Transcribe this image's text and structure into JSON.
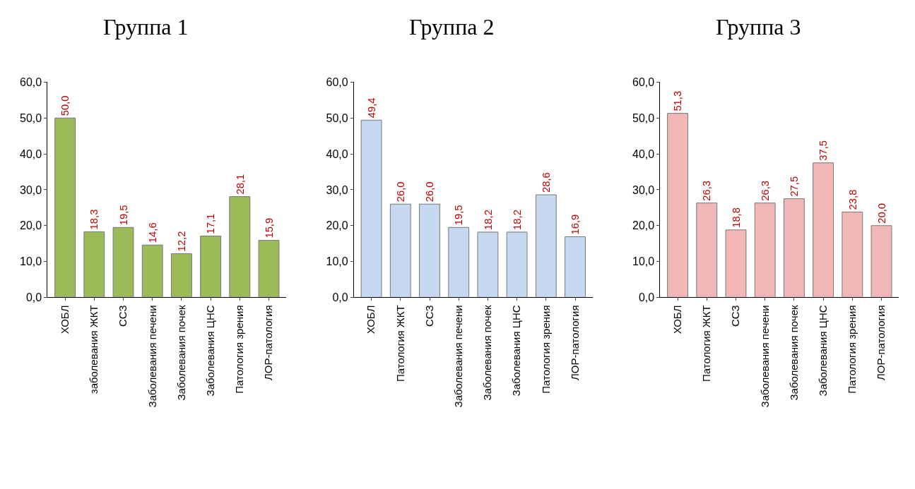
{
  "chart_data": [
    {
      "type": "bar",
      "title": "Группа 1",
      "categories": [
        "ХОБЛ",
        "заболевания ЖКТ",
        "ССЗ",
        "Заболевания печени",
        "Заболевания почек",
        "Заболевания ЦНС",
        "Патология зрения",
        "ЛОР-патология"
      ],
      "values": [
        50.0,
        18.3,
        19.5,
        14.6,
        12.2,
        17.1,
        28.1,
        15.9
      ],
      "value_labels": [
        "50,0",
        "18,3",
        "19,5",
        "14,6",
        "12,2",
        "17,1",
        "28,1",
        "15,9"
      ],
      "color": "#9bbb59",
      "ylim": [
        0,
        60
      ],
      "yticks": [
        {
          "value": 0,
          "label": "0,0"
        },
        {
          "value": 10,
          "label": "10,0"
        },
        {
          "value": 20,
          "label": "20,0"
        },
        {
          "value": 30,
          "label": "30,0"
        },
        {
          "value": 40,
          "label": "40,0"
        },
        {
          "value": 50,
          "label": "50,0"
        },
        {
          "value": 60,
          "label": "60,0"
        }
      ]
    },
    {
      "type": "bar",
      "title": "Группа 2",
      "categories": [
        "ХОБЛ",
        "Патология ЖКТ",
        "ССЗ",
        "Заболевания печени",
        "Заболевания почек",
        "Заболевания ЦНС",
        "Патология зрения",
        "ЛОР-патология"
      ],
      "values": [
        49.4,
        26.0,
        26.0,
        19.5,
        18.2,
        18.2,
        28.6,
        16.9
      ],
      "value_labels": [
        "49,4",
        "26,0",
        "26,0",
        "19,5",
        "18,2",
        "18,2",
        "28,6",
        "16,9"
      ],
      "color": "#c6d9f1",
      "ylim": [
        0,
        60
      ],
      "yticks": [
        {
          "value": 0,
          "label": "0,0"
        },
        {
          "value": 10,
          "label": "10,0"
        },
        {
          "value": 20,
          "label": "20,0"
        },
        {
          "value": 30,
          "label": "30,0"
        },
        {
          "value": 40,
          "label": "40,0"
        },
        {
          "value": 50,
          "label": "50,0"
        },
        {
          "value": 60,
          "label": "60,0"
        }
      ]
    },
    {
      "type": "bar",
      "title": "Группа 3",
      "categories": [
        "ХОБЛ",
        "Патология ЖКТ",
        "ССЗ",
        "Заболевания печени",
        "Заболевания почек",
        "Заболевания ЦНС",
        "Патология зрения",
        "ЛОР-патология"
      ],
      "values": [
        51.3,
        26.3,
        18.8,
        26.3,
        27.5,
        37.5,
        23.8,
        20.0
      ],
      "value_labels": [
        "51,3",
        "26,3",
        "18,8",
        "26,3",
        "27,5",
        "37,5",
        "23,8",
        "20,0"
      ],
      "color": "#f2b8b8",
      "ylim": [
        0,
        60
      ],
      "yticks": [
        {
          "value": 0,
          "label": "0,0"
        },
        {
          "value": 10,
          "label": "10,0"
        },
        {
          "value": 20,
          "label": "20,0"
        },
        {
          "value": 30,
          "label": "30,0"
        },
        {
          "value": 40,
          "label": "40,0"
        },
        {
          "value": 50,
          "label": "50,0"
        },
        {
          "value": 60,
          "label": "60,0"
        }
      ]
    }
  ]
}
